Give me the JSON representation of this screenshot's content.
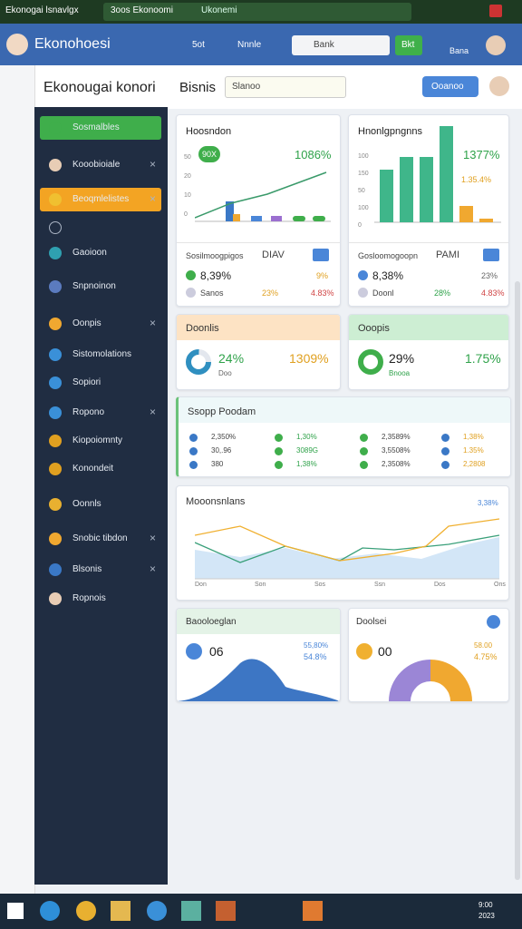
{
  "browser": {
    "tabs": [
      "Ekonogai lsnavlgx",
      "3oos Ekonoomi",
      "Ukonemi"
    ]
  },
  "header": {
    "title": "Ekonohoesi",
    "nav": [
      "5ot",
      "Nnnle"
    ],
    "search": "Bank",
    "button": "Bkt",
    "user": "Bana"
  },
  "toolbar": {
    "title": "Ekonougai konori",
    "section": "Bisnis",
    "dropdown": "Slanoo",
    "button": "Ooanoo"
  },
  "sidebar": {
    "items": [
      "Sosmalbles",
      "Kooobioiale",
      "Beoqmlelistes",
      "Gaoioon",
      "Snpnoinon",
      "Oonpis",
      "Sistomolations",
      "Sopiori",
      "Ropono",
      "Kiopoiomnty",
      "Konondeit",
      "Oonnls",
      "Snobic tibdon",
      "Blsonis",
      "Ropnois"
    ]
  },
  "cards": {
    "overview": {
      "title": "Hoosndon",
      "badge": "90X",
      "value": "1086%",
      "axis": [
        "50",
        "20",
        "10",
        "0"
      ],
      "footer_title": "Sosilmoogpigos",
      "footer_tag": "DIAV",
      "rows": [
        [
          "8,39%",
          "9%"
        ],
        [
          "Sanos",
          "23%",
          "4.83%"
        ]
      ]
    },
    "growth": {
      "title": "Hnonlgpngnns",
      "value": "1377%",
      "sub": "1.35.4%",
      "axis": [
        "100",
        "150",
        "50",
        "100",
        "0"
      ],
      "footer_title": "Gosloomogoopn",
      "footer_tag": "PAMI",
      "rows": [
        [
          "8,38%",
          "23%"
        ],
        [
          "Doonl",
          "28%",
          "4.83%"
        ]
      ]
    },
    "orange": {
      "title": "Doonlis",
      "value": "24%",
      "side": "1309%",
      "caption": "Doo"
    },
    "green": {
      "title": "Ooopis",
      "value": "29%",
      "side": "1.75%",
      "caption": "Bnooa"
    },
    "table": {
      "title": "Ssopp Poodam",
      "columns": [
        [
          "2,350%",
          "30,.96",
          "380"
        ],
        [
          "1,30%",
          "3089G",
          "1,38%"
        ],
        [
          "2,3589%",
          "3,5508%",
          "2,3508%"
        ],
        [
          "1,38%",
          "1.35%",
          "2,2808"
        ]
      ]
    },
    "trend": {
      "title": "Mooonsnlans",
      "value": "3,38%",
      "xlabels": [
        "Don",
        "Son",
        "Sos",
        "Ssn",
        "Dos",
        "Ons"
      ]
    },
    "left_bottom": {
      "title": "Baooloeglan",
      "value": "06",
      "stats": [
        "55,80%",
        "54.8%"
      ]
    },
    "right_bottom": {
      "title": "Doolsei",
      "value": "00",
      "stats": [
        "58.00",
        "4.75%"
      ]
    }
  },
  "taskbar": {
    "clock": [
      "9:00",
      "2023"
    ]
  }
}
